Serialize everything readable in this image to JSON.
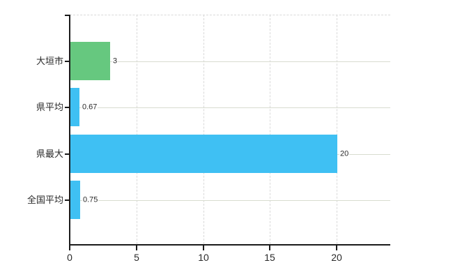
{
  "chart_data": {
    "type": "bar",
    "orientation": "horizontal",
    "title": "",
    "xlabel": "",
    "ylabel": "",
    "categories": [
      "大垣市",
      "県平均",
      "県最大",
      "全国平均"
    ],
    "values": [
      3,
      0.67,
      20,
      0.75
    ],
    "value_labels": [
      "3",
      "0.67",
      "20",
      "0.75"
    ],
    "bar_colors": [
      "#66c87f",
      "#3fc0f3",
      "#3fc0f3",
      "#3fc0f3"
    ],
    "x_axis": {
      "ticks": [
        0,
        5,
        10,
        15,
        20
      ],
      "tick_labels": [
        "0",
        "5",
        "10",
        "15",
        "20"
      ],
      "range": [
        0,
        24
      ]
    },
    "grid": {
      "vertical_lines": "dashed",
      "horizontal_row_lines": "solid",
      "top_boundary": "dashed"
    },
    "legend": "none"
  },
  "colors": {
    "background": "#ffffff",
    "bar_green": "#66c87f",
    "bar_blue": "#3fc0f3",
    "axis": "#1b1b1b",
    "grid_solid": "#d8dcd0",
    "grid_dashed": "#d9d9d9",
    "text": "#2a2a2a"
  }
}
